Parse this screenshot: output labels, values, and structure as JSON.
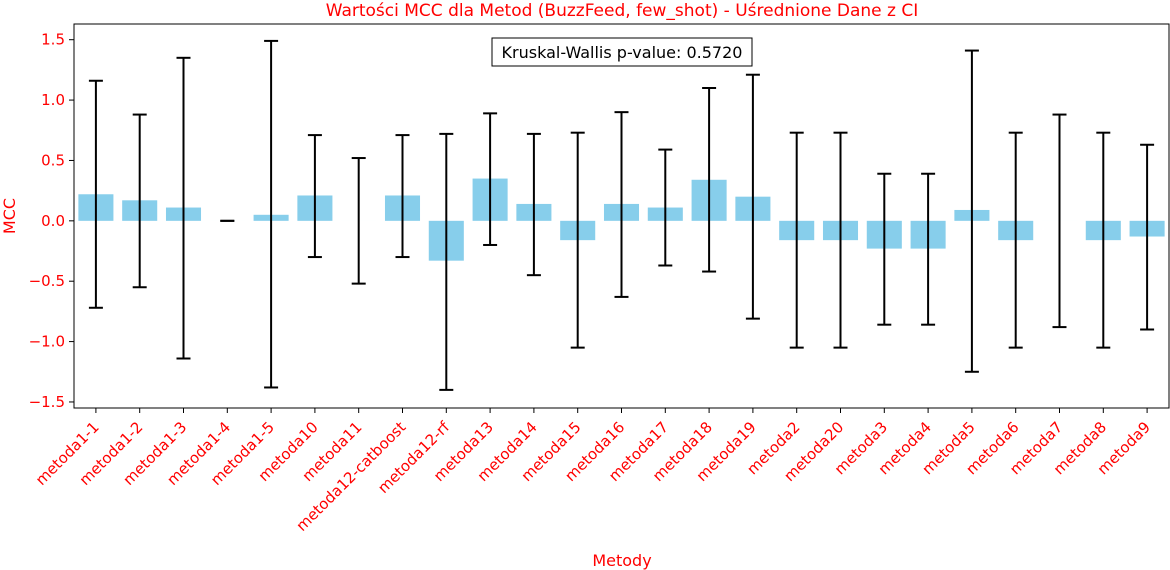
{
  "chart_data": {
    "type": "bar",
    "title": "Wartości MCC dla Metod (BuzzFeed, few_shot) - Uśrednione Dane z CI",
    "xlabel": "Metody",
    "ylabel": "MCC",
    "ylim": [
      -1.55,
      1.63
    ],
    "yticks": [
      -1.5,
      -1.0,
      -0.5,
      0.0,
      0.5,
      1.0,
      1.5
    ],
    "ytick_labels": [
      "−1.5",
      "−1.0",
      "−0.5",
      "0.0",
      "0.5",
      "1.0",
      "1.5"
    ],
    "annotation": "Kruskal-Wallis p-value: 0.5720",
    "grid": false,
    "colors": {
      "bar": "#87ceeb",
      "error_bar": "#000000",
      "labels": "#ff0000",
      "axis": "#000000"
    },
    "categories": [
      "metoda1-1",
      "metoda1-2",
      "metoda1-3",
      "metoda1-4",
      "metoda1-5",
      "metoda10",
      "metoda11",
      "metoda12-catboost",
      "metoda12-rf",
      "metoda13",
      "metoda14",
      "metoda15",
      "metoda16",
      "metoda17",
      "metoda18",
      "metoda19",
      "metoda2",
      "metoda20",
      "metoda3",
      "metoda4",
      "metoda5",
      "metoda6",
      "metoda7",
      "metoda8",
      "metoda9"
    ],
    "values": [
      0.22,
      0.17,
      0.11,
      0.0,
      0.05,
      0.21,
      0.0,
      0.21,
      -0.33,
      0.35,
      0.14,
      -0.16,
      0.14,
      0.11,
      0.34,
      0.2,
      -0.16,
      -0.16,
      -0.23,
      -0.23,
      0.09,
      -0.16,
      0.0,
      -0.16,
      -0.13
    ],
    "ci_lower": [
      -0.72,
      -0.55,
      -1.14,
      0.0,
      -1.38,
      -0.3,
      -0.52,
      -0.3,
      -1.4,
      -0.2,
      -0.45,
      -1.05,
      -0.63,
      -0.37,
      -0.42,
      -0.81,
      -1.05,
      -1.05,
      -0.86,
      -0.86,
      -1.25,
      -1.05,
      -0.88,
      -1.05,
      -0.9
    ],
    "ci_upper": [
      1.16,
      0.88,
      1.35,
      0.0,
      1.49,
      0.71,
      0.52,
      0.71,
      0.72,
      0.89,
      0.72,
      0.73,
      0.9,
      0.59,
      1.1,
      1.21,
      0.73,
      0.73,
      0.39,
      0.39,
      1.41,
      0.73,
      0.88,
      0.73,
      0.63
    ]
  }
}
